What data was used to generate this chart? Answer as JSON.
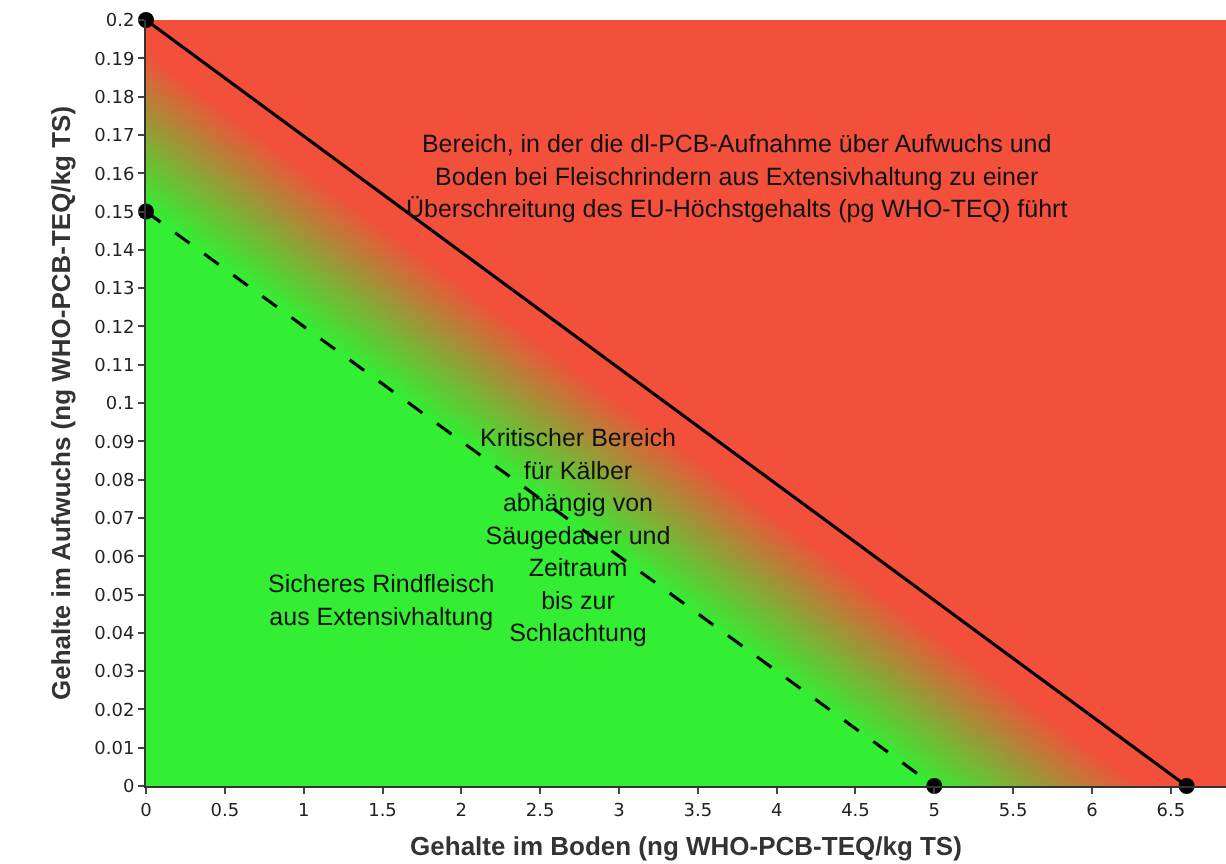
{
  "chart_data": {
    "type": "line",
    "xlabel": "Gehalte im Boden (ng WHO-PCB-TEQ/kg TS)",
    "ylabel": "Gehalte im Aufwuchs (ng WHO-PCB-TEQ/kg TS)",
    "series": [
      {
        "color": "#000000",
        "x": [
          0,
          6.6
        ],
        "values": [
          0.2,
          0
        ],
        "line_style": "solid"
      },
      {
        "color": "#000000",
        "x": [
          0,
          5
        ],
        "values": [
          0.15,
          0
        ],
        "line_style": "dashed"
      }
    ],
    "marker": "circle",
    "grid": false,
    "xlim": [
      0,
      6.85
    ],
    "xticks": [
      0,
      0.5,
      1,
      1.5,
      2,
      2.5,
      3,
      3.5,
      4,
      4.5,
      5,
      5.5,
      6,
      6.5
    ],
    "ylim": [
      0,
      0.2
    ],
    "yticks": [
      0,
      0.01,
      0.02,
      0.03,
      0.04,
      0.05,
      0.06,
      0.07,
      0.08,
      0.09,
      0.1,
      0.11,
      0.12,
      0.13,
      0.14,
      0.15,
      0.16,
      0.17,
      0.18,
      0.19,
      0.2
    ],
    "annotations": [
      "Bereich, in der die dl-PCB-Aufnahme über Aufwuchs und\nBoden bei Fleischrindern aus Extensivhaltung zu einer\nÜberschreitung des EU-Höchstgehalts (pg WHO-TEQ) führt",
      "Kritischer Bereich\nfür Kälber\nabhängig von\nSäugedauer und\nZeitraum\nbis zur\nSchlachtung",
      "Sicheres Rindfleisch\naus Extensivhaltung"
    ]
  }
}
